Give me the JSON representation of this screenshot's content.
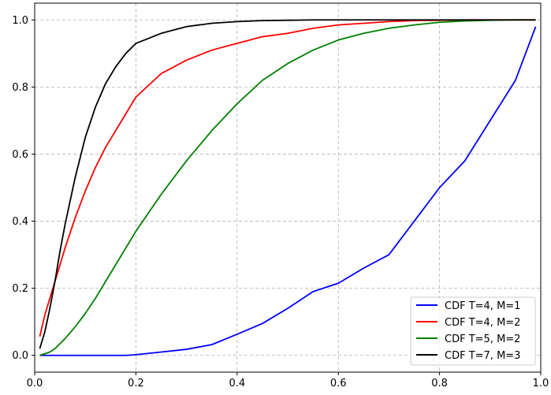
{
  "chart_data": {
    "type": "line",
    "title": "",
    "xlabel": "",
    "ylabel": "",
    "xlim": [
      0.0,
      1.0
    ],
    "ylim": [
      -0.05,
      1.05
    ],
    "xticks": [
      "0.0",
      "0.2",
      "0.4",
      "0.6",
      "0.8",
      "1.0"
    ],
    "yticks": [
      "0.0",
      "0.2",
      "0.4",
      "0.6",
      "0.8",
      "1.0"
    ],
    "grid": true,
    "grid_style": "dashed",
    "legend_position": "lower-right",
    "x": [
      0.01,
      0.02,
      0.03,
      0.04,
      0.05,
      0.06,
      0.08,
      0.1,
      0.12,
      0.14,
      0.16,
      0.18,
      0.2,
      0.25,
      0.3,
      0.35,
      0.4,
      0.45,
      0.5,
      0.55,
      0.6,
      0.65,
      0.7,
      0.75,
      0.8,
      0.85,
      0.9,
      0.95,
      0.99
    ],
    "series": [
      {
        "name": "CDF T=4, M=1",
        "color": "#0000ff",
        "values": [
          0.0,
          0.0,
          0.0,
          0.0,
          0.0,
          0.0,
          0.0,
          0.0,
          0.0,
          0.0,
          0.0,
          0.0,
          0.002,
          0.01,
          0.018,
          0.032,
          0.063,
          0.095,
          0.14,
          0.19,
          0.215,
          0.26,
          0.3,
          0.4,
          0.5,
          0.58,
          0.7,
          0.82,
          0.98
        ]
      },
      {
        "name": "CDF T=4, M=2",
        "color": "#ff0000",
        "values": [
          0.056,
          0.12,
          0.17,
          0.22,
          0.27,
          0.32,
          0.41,
          0.49,
          0.56,
          0.62,
          0.67,
          0.72,
          0.77,
          0.84,
          0.88,
          0.91,
          0.93,
          0.95,
          0.96,
          0.975,
          0.985,
          0.99,
          0.995,
          0.998,
          0.999,
          1.0,
          1.0,
          1.0,
          1.0
        ]
      },
      {
        "name": "CDF T=5, M=2",
        "color": "#008000",
        "values": [
          0.0,
          0.005,
          0.01,
          0.02,
          0.035,
          0.05,
          0.085,
          0.125,
          0.17,
          0.22,
          0.27,
          0.32,
          0.37,
          0.48,
          0.58,
          0.67,
          0.75,
          0.82,
          0.87,
          0.91,
          0.94,
          0.96,
          0.975,
          0.985,
          0.993,
          0.997,
          0.999,
          1.0,
          1.0
        ]
      },
      {
        "name": "CDF T=7, M=3",
        "color": "#000000",
        "values": [
          0.02,
          0.07,
          0.14,
          0.22,
          0.31,
          0.39,
          0.53,
          0.65,
          0.74,
          0.81,
          0.86,
          0.9,
          0.93,
          0.96,
          0.98,
          0.99,
          0.995,
          0.998,
          0.999,
          1.0,
          1.0,
          1.0,
          1.0,
          1.0,
          1.0,
          1.0,
          1.0,
          1.0,
          1.0
        ]
      }
    ]
  }
}
